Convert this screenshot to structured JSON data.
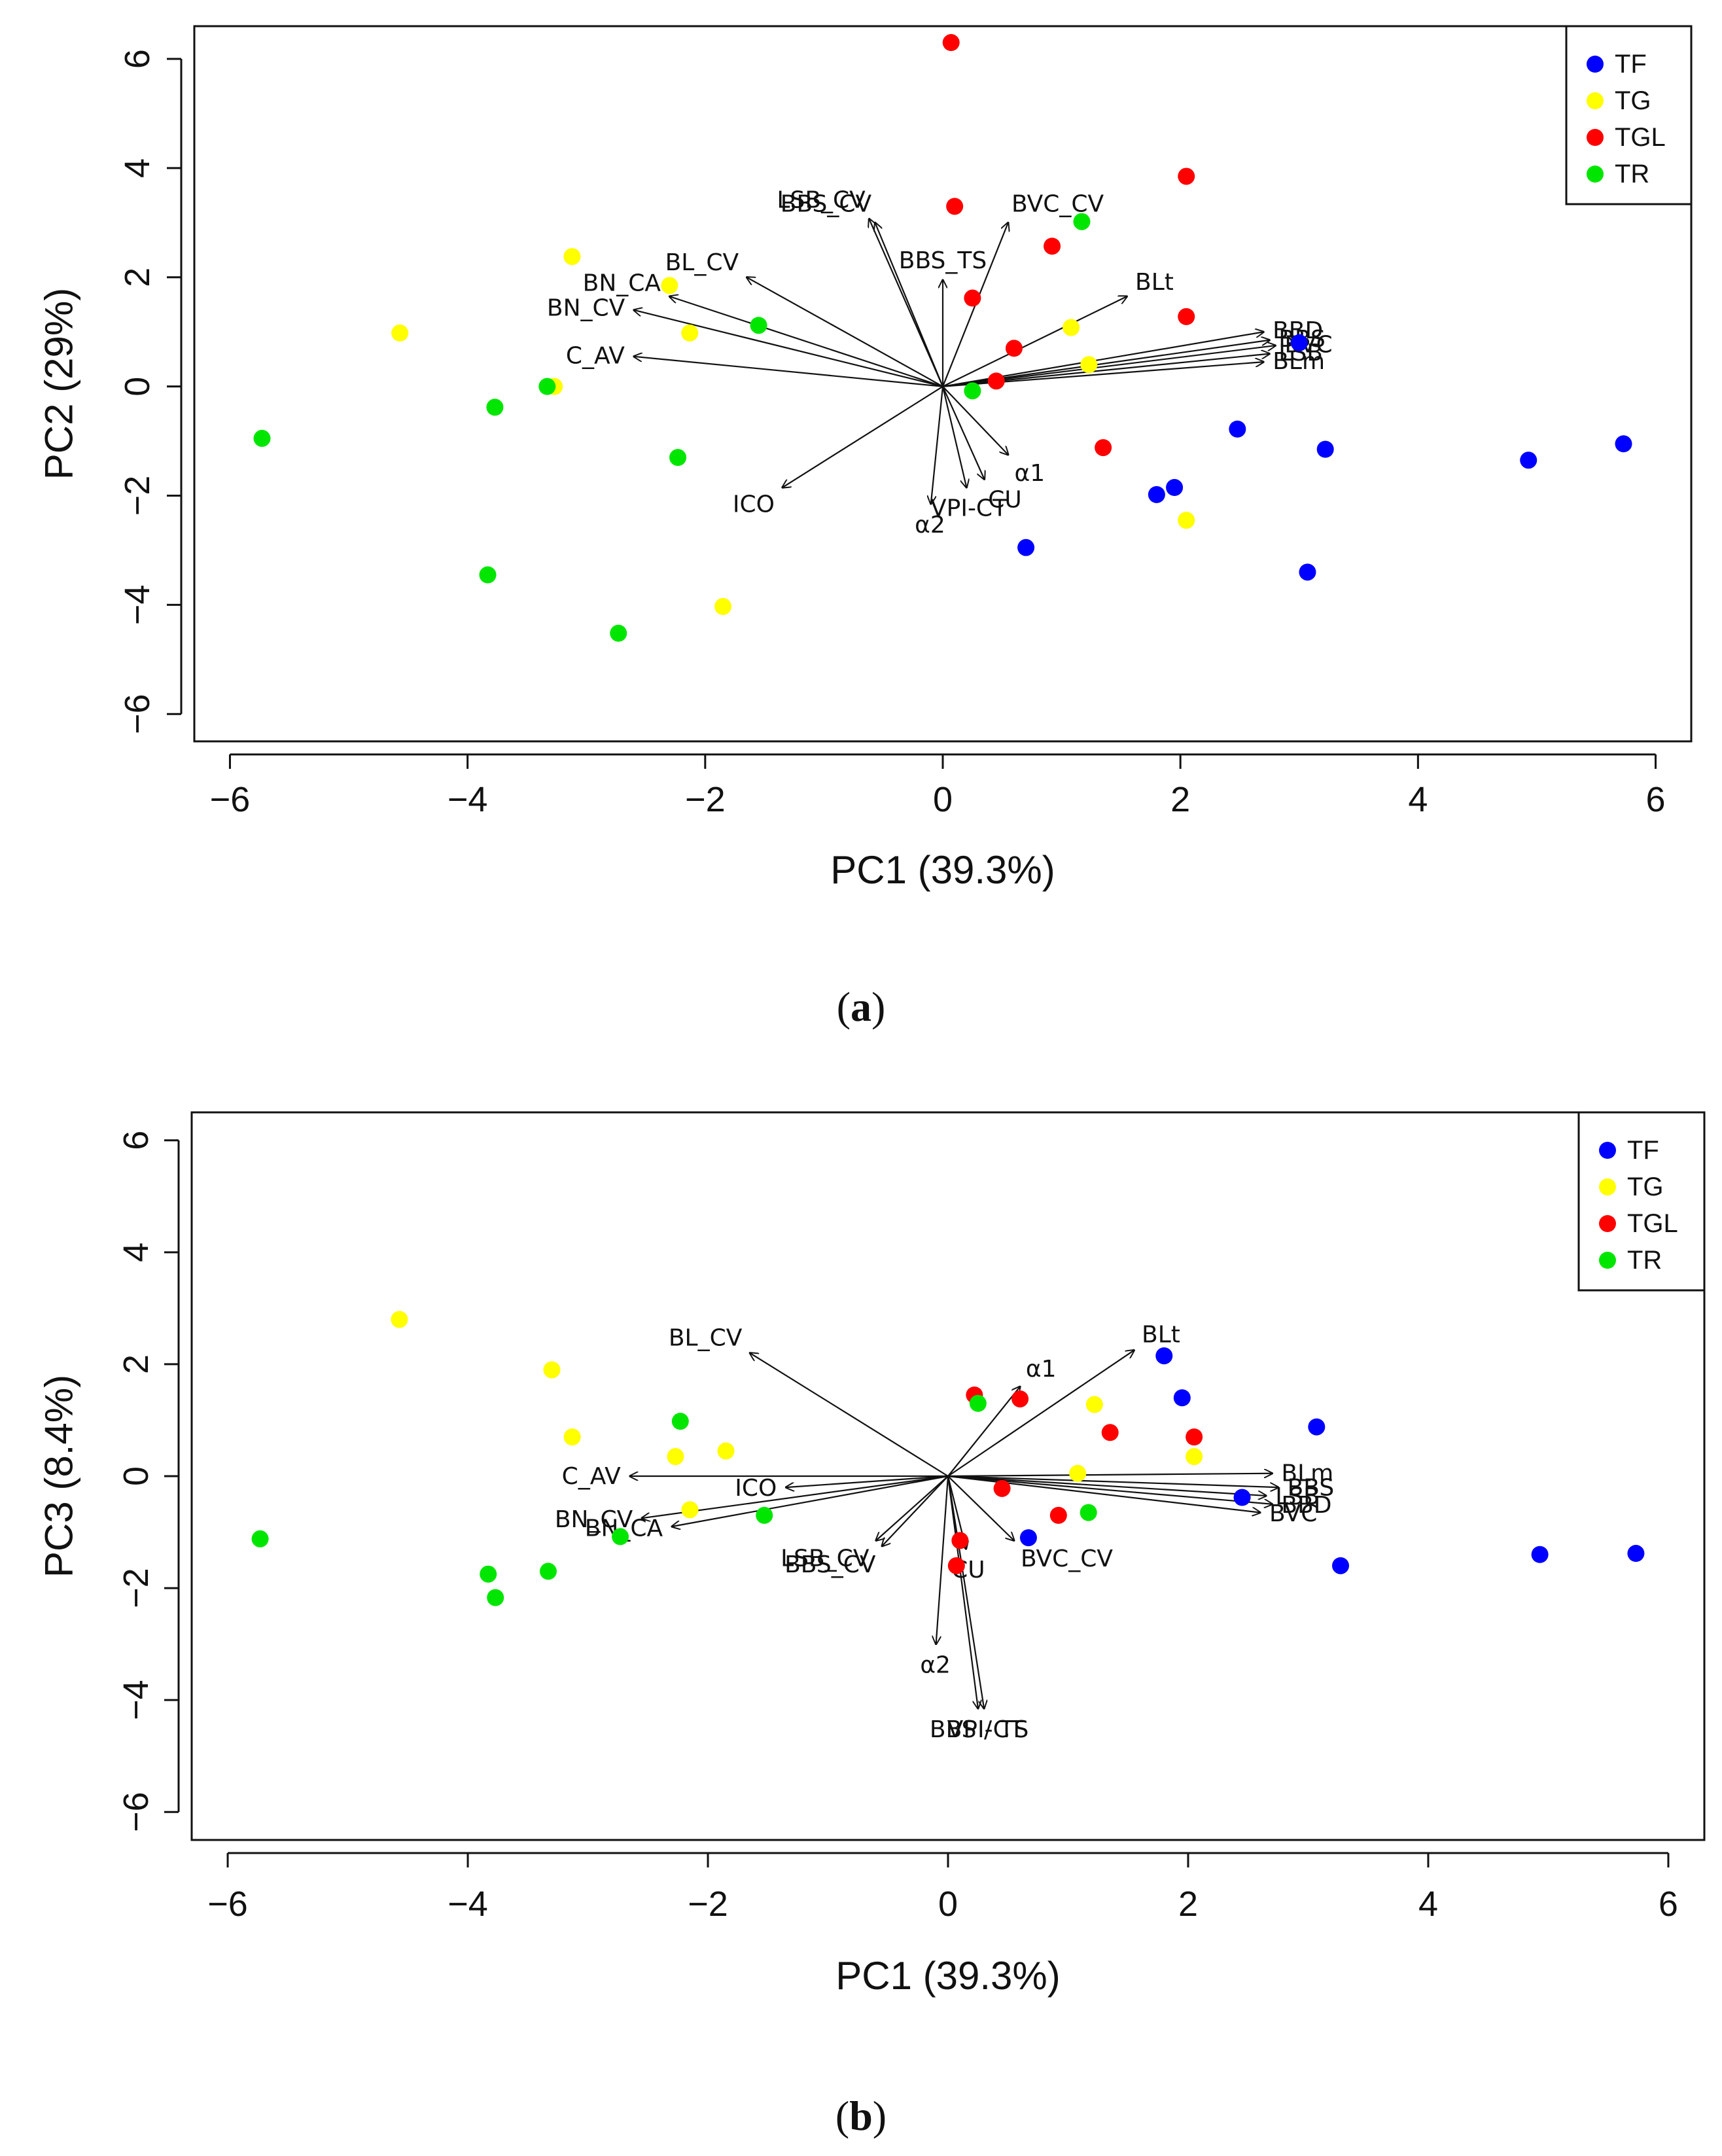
{
  "chart_data": [
    {
      "type": "scatter",
      "subtype": "biplot",
      "panel_label": "a",
      "xlabel": "PC1 (39.3%)",
      "ylabel": "PC2 (29%)",
      "xlim": [
        -6.3,
        6.3
      ],
      "ylim": [
        -6.5,
        6.6
      ],
      "xticks": [
        -6,
        -4,
        -2,
        0,
        2,
        4,
        6
      ],
      "yticks": [
        -6,
        -4,
        -2,
        0,
        2,
        4,
        6
      ],
      "grid": false,
      "legend_position": "top-right",
      "colors": {
        "TF": "#0000ff",
        "TG": "#ffff00",
        "TGL": "#ff0000",
        "TR": "#00e600"
      },
      "series": [
        {
          "name": "TF",
          "points": [
            [
              3.0,
              0.8
            ],
            [
              3.22,
              -1.15
            ],
            [
              2.48,
              -0.78
            ],
            [
              1.8,
              -1.98
            ],
            [
              1.95,
              -1.85
            ],
            [
              0.7,
              -2.95
            ],
            [
              3.07,
              -3.4
            ],
            [
              4.93,
              -1.35
            ],
            [
              5.73,
              -1.05
            ]
          ]
        },
        {
          "name": "TG",
          "points": [
            [
              -4.57,
              0.98
            ],
            [
              -3.12,
              2.38
            ],
            [
              -3.27,
              0.0
            ],
            [
              -2.3,
              1.85
            ],
            [
              -2.13,
              0.98
            ],
            [
              1.08,
              1.08
            ],
            [
              1.23,
              0.4
            ],
            [
              2.05,
              -2.45
            ],
            [
              -1.85,
              -4.03
            ]
          ]
        },
        {
          "name": "TGL",
          "points": [
            [
              0.07,
              6.3
            ],
            [
              0.1,
              3.3
            ],
            [
              2.05,
              3.85
            ],
            [
              0.92,
              2.57
            ],
            [
              0.25,
              1.62
            ],
            [
              0.6,
              0.7
            ],
            [
              0.45,
              0.1
            ],
            [
              2.05,
              1.28
            ],
            [
              1.35,
              -1.12
            ]
          ]
        },
        {
          "name": "TR",
          "points": [
            [
              -5.73,
              -0.95
            ],
            [
              -3.77,
              -0.38
            ],
            [
              -3.33,
              0.0
            ],
            [
              -1.55,
              1.12
            ],
            [
              -2.23,
              -1.3
            ],
            [
              -3.83,
              -3.45
            ],
            [
              -2.73,
              -4.52
            ],
            [
              0.25,
              -0.08
            ],
            [
              1.17,
              3.02
            ]
          ]
        }
      ],
      "vectors": [
        {
          "label": "LSB_CV",
          "x": -0.62,
          "y": 3.07
        },
        {
          "label": "BBS_CV",
          "x": -0.57,
          "y": 3.0
        },
        {
          "label": "BVC_CV",
          "x": 0.55,
          "y": 3.0
        },
        {
          "label": "BBS_TS",
          "x": 0.0,
          "y": 1.95
        },
        {
          "label": "BL_CV",
          "x": -1.65,
          "y": 2.0
        },
        {
          "label": "BN_CA",
          "x": -2.3,
          "y": 1.65
        },
        {
          "label": "BN_CV",
          "x": -2.6,
          "y": 1.4
        },
        {
          "label": "C_AV",
          "x": -2.6,
          "y": 0.55
        },
        {
          "label": "BLt",
          "x": 1.55,
          "y": 1.65
        },
        {
          "label": "BBD",
          "x": 2.7,
          "y": 1.0
        },
        {
          "label": "BBS",
          "x": 2.75,
          "y": 0.85
        },
        {
          "label": "BVC",
          "x": 2.8,
          "y": 0.75
        },
        {
          "label": "LSB",
          "x": 2.75,
          "y": 0.6
        },
        {
          "label": "BLm",
          "x": 2.7,
          "y": 0.45
        },
        {
          "label": "α1",
          "x": 0.55,
          "y": -1.25
        },
        {
          "label": "CU",
          "x": 0.35,
          "y": -1.7
        },
        {
          "label": "VPI-CT",
          "x": 0.2,
          "y": -1.85
        },
        {
          "label": "α2",
          "x": -0.1,
          "y": -2.15
        },
        {
          "label": "ICO",
          "x": -1.35,
          "y": -1.85
        }
      ]
    },
    {
      "type": "scatter",
      "subtype": "biplot",
      "panel_label": "b",
      "xlabel": "PC1 (39.3%)",
      "ylabel": "PC3 (8.4%)",
      "xlim": [
        -6.3,
        6.3
      ],
      "ylim": [
        -6.5,
        6.5
      ],
      "xticks": [
        -6,
        -4,
        -2,
        0,
        2,
        4,
        6
      ],
      "yticks": [
        -6,
        -4,
        -2,
        0,
        2,
        4,
        6
      ],
      "grid": false,
      "legend_position": "top-right",
      "colors": {
        "TF": "#0000ff",
        "TG": "#ffff00",
        "TGL": "#ff0000",
        "TR": "#00e600"
      },
      "series": [
        {
          "name": "TF",
          "points": [
            [
              1.8,
              2.15
            ],
            [
              1.95,
              1.4
            ],
            [
              3.07,
              0.88
            ],
            [
              2.45,
              -0.38
            ],
            [
              3.27,
              -1.6
            ],
            [
              0.67,
              -1.1
            ],
            [
              4.93,
              -1.4
            ],
            [
              5.73,
              -1.38
            ]
          ]
        },
        {
          "name": "TG",
          "points": [
            [
              -4.57,
              2.8
            ],
            [
              -3.3,
              1.9
            ],
            [
              -3.13,
              0.7
            ],
            [
              -2.27,
              0.35
            ],
            [
              -1.85,
              0.45
            ],
            [
              -2.15,
              -0.6
            ],
            [
              1.22,
              1.28
            ],
            [
              1.08,
              0.05
            ],
            [
              2.05,
              0.35
            ]
          ]
        },
        {
          "name": "TGL",
          "points": [
            [
              0.22,
              1.45
            ],
            [
              0.6,
              1.38
            ],
            [
              1.35,
              0.78
            ],
            [
              2.05,
              0.7
            ],
            [
              0.45,
              -0.22
            ],
            [
              0.92,
              -0.7
            ],
            [
              0.1,
              -1.15
            ],
            [
              0.07,
              -1.6
            ]
          ]
        },
        {
          "name": "TR",
          "points": [
            [
              -5.73,
              -1.12
            ],
            [
              -3.83,
              -1.75
            ],
            [
              -3.77,
              -2.17
            ],
            [
              -3.33,
              -1.7
            ],
            [
              -2.73,
              -1.08
            ],
            [
              -2.23,
              0.98
            ],
            [
              -1.53,
              -0.7
            ],
            [
              0.25,
              1.3
            ],
            [
              1.17,
              -0.65
            ]
          ]
        }
      ],
      "vectors": [
        {
          "label": "BL_CV",
          "x": -1.65,
          "y": 2.2
        },
        {
          "label": "BLt",
          "x": 1.55,
          "y": 2.25
        },
        {
          "label": "α1",
          "x": 0.6,
          "y": 1.6
        },
        {
          "label": "C_AV",
          "x": -2.65,
          "y": 0.0
        },
        {
          "label": "ICO",
          "x": -1.35,
          "y": -0.2
        },
        {
          "label": "BN_CV",
          "x": -2.55,
          "y": -0.75
        },
        {
          "label": "BN_CA",
          "x": -2.3,
          "y": -0.9
        },
        {
          "label": "LSB_CV",
          "x": -0.6,
          "y": -1.15
        },
        {
          "label": "BBS_CV",
          "x": -0.55,
          "y": -1.25
        },
        {
          "label": "CU",
          "x": 0.15,
          "y": -1.3
        },
        {
          "label": "BVC_CV",
          "x": 0.55,
          "y": -1.15
        },
        {
          "label": "α2",
          "x": -0.1,
          "y": -3.0
        },
        {
          "label": "BBS / TS",
          "x": 0.25,
          "y": -4.15
        },
        {
          "label": "VPI-CT",
          "x": 0.3,
          "y": -4.15
        },
        {
          "label": "BLm",
          "x": 2.7,
          "y": 0.05
        },
        {
          "label": "BBS",
          "x": 2.75,
          "y": -0.2
        },
        {
          "label": "BBD",
          "x": 2.7,
          "y": -0.5
        },
        {
          "label": "BVC",
          "x": 2.6,
          "y": -0.65
        },
        {
          "label": "LSB",
          "x": 2.65,
          "y": -0.35
        }
      ]
    }
  ]
}
